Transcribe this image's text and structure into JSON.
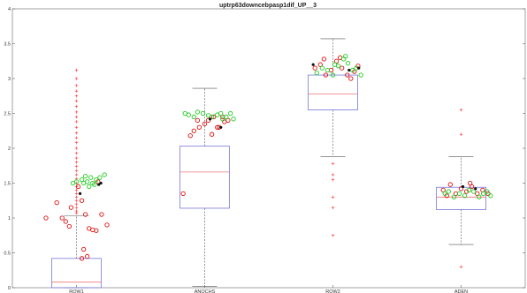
{
  "chart_data": {
    "type": "box",
    "title": "uptrp63downcebpasp1dif_UP__3",
    "xlabel": "",
    "ylabel": "",
    "ylim": [
      0,
      4
    ],
    "yticks": [
      "0",
      "0.5",
      "1",
      "1.5",
      "2",
      "2.5",
      "3",
      "3.5",
      "4"
    ],
    "grid": false,
    "categories": [
      "ROW1",
      "ANOCHS",
      "ROW2",
      "ADEN"
    ],
    "colors": {
      "box": "#7777dd",
      "median": "#ee7777",
      "whisker": "#555555",
      "outlier": "#ff3333",
      "red_marker": "#dd1111",
      "green_marker": "#22cc22",
      "black_marker": "#111111"
    },
    "boxes": [
      {
        "q1": 0.0,
        "median": 0.08,
        "q3": 0.42,
        "whisker_low": 0.0,
        "whisker_high": 1.03,
        "outliers": [
          3.12,
          3.0,
          2.9,
          2.82,
          2.75,
          2.68,
          2.6,
          2.52,
          2.45,
          2.38,
          2.3,
          2.22,
          2.15,
          2.08,
          2.0,
          1.93,
          1.86,
          1.8,
          1.74,
          1.68,
          1.62,
          1.56,
          1.5,
          1.45,
          1.4,
          1.35,
          1.3,
          1.25,
          1.2,
          1.15,
          1.1,
          1.07
        ]
      },
      {
        "q1": 1.14,
        "median": 1.66,
        "q3": 2.03,
        "whisker_low": 0.02,
        "whisker_high": 2.86,
        "outliers": []
      },
      {
        "q1": 2.55,
        "median": 2.78,
        "q3": 3.05,
        "whisker_low": 1.88,
        "whisker_high": 3.57,
        "outliers": [
          1.78,
          1.62,
          1.55,
          1.3,
          1.15,
          0.75
        ]
      },
      {
        "q1": 1.12,
        "median": 1.3,
        "q3": 1.44,
        "whisker_low": 0.62,
        "whisker_high": 1.88,
        "outliers": [
          2.55,
          2.2,
          0.3
        ]
      }
    ],
    "markers": [
      {
        "category": 0,
        "series": "red",
        "points": [
          [
            -0.85,
            1.0
          ],
          [
            -0.55,
            1.22
          ],
          [
            -0.4,
            1.0
          ],
          [
            -0.3,
            0.95
          ],
          [
            -0.2,
            0.88
          ],
          [
            0.05,
            1.45
          ],
          [
            0.15,
            1.25
          ],
          [
            0.25,
            1.05
          ],
          [
            0.35,
            0.85
          ],
          [
            0.45,
            0.83
          ],
          [
            0.55,
            0.82
          ],
          [
            0.7,
            1.05
          ],
          [
            0.85,
            0.9
          ],
          [
            0.2,
            0.55
          ],
          [
            0.3,
            0.45
          ],
          [
            0.15,
            0.42
          ],
          [
            0.6,
            1.52
          ],
          [
            -0.15,
            1.15
          ]
        ]
      },
      {
        "category": 0,
        "series": "green",
        "points": [
          [
            -0.1,
            1.5
          ],
          [
            0.0,
            1.52
          ],
          [
            0.15,
            1.55
          ],
          [
            0.25,
            1.6
          ],
          [
            0.35,
            1.45
          ],
          [
            0.45,
            1.5
          ],
          [
            0.55,
            1.55
          ],
          [
            0.65,
            1.58
          ],
          [
            0.78,
            1.62
          ],
          [
            0.4,
            1.58
          ],
          [
            0.5,
            1.48
          ],
          [
            0.2,
            1.5
          ],
          [
            0.3,
            1.52
          ]
        ]
      },
      {
        "category": 0,
        "series": "black",
        "points": [
          [
            0.1,
            1.35
          ],
          [
            0.62,
            1.48
          ],
          [
            0.68,
            1.5
          ]
        ]
      },
      {
        "category": 1,
        "series": "red",
        "points": [
          [
            -0.6,
            1.35
          ],
          [
            -0.4,
            2.18
          ],
          [
            -0.3,
            2.25
          ],
          [
            -0.15,
            2.3
          ],
          [
            0.0,
            2.35
          ],
          [
            0.1,
            2.4
          ],
          [
            0.25,
            2.45
          ],
          [
            0.4,
            2.3
          ],
          [
            0.55,
            2.38
          ],
          [
            0.65,
            2.4
          ],
          [
            0.2,
            2.2
          ],
          [
            0.35,
            2.3
          ],
          [
            -0.2,
            2.4
          ],
          [
            0.5,
            2.45
          ]
        ]
      },
      {
        "category": 1,
        "series": "green",
        "points": [
          [
            -0.55,
            2.5
          ],
          [
            -0.45,
            2.48
          ],
          [
            -0.3,
            2.45
          ],
          [
            -0.2,
            2.52
          ],
          [
            -0.05,
            2.5
          ],
          [
            0.1,
            2.47
          ],
          [
            0.2,
            2.45
          ],
          [
            0.35,
            2.48
          ],
          [
            0.5,
            2.42
          ],
          [
            0.6,
            2.45
          ],
          [
            0.72,
            2.5
          ],
          [
            0.8,
            2.42
          ],
          [
            0.45,
            2.5
          ]
        ]
      },
      {
        "category": 1,
        "series": "black",
        "points": [
          [
            0.45,
            2.3
          ],
          [
            0.15,
            2.42
          ]
        ]
      },
      {
        "category": 2,
        "series": "red",
        "points": [
          [
            -0.5,
            3.15
          ],
          [
            -0.35,
            3.2
          ],
          [
            -0.2,
            3.05
          ],
          [
            -0.05,
            3.12
          ],
          [
            0.1,
            3.25
          ],
          [
            0.25,
            3.15
          ],
          [
            0.4,
            3.05
          ],
          [
            0.5,
            3.0
          ],
          [
            0.6,
            3.1
          ],
          [
            0.7,
            3.18
          ],
          [
            0.2,
            3.3
          ],
          [
            -0.25,
            3.28
          ]
        ]
      },
      {
        "category": 2,
        "series": "green",
        "points": [
          [
            -0.45,
            3.08
          ],
          [
            -0.3,
            3.15
          ],
          [
            -0.15,
            3.12
          ],
          [
            0.0,
            3.05
          ],
          [
            0.15,
            3.18
          ],
          [
            0.3,
            3.28
          ],
          [
            0.42,
            3.22
          ],
          [
            0.55,
            3.12
          ],
          [
            0.65,
            3.15
          ],
          [
            0.78,
            3.05
          ],
          [
            0.35,
            3.32
          ],
          [
            0.05,
            3.2
          ]
        ]
      },
      {
        "category": 2,
        "series": "black",
        "points": [
          [
            -0.55,
            3.2
          ],
          [
            0.45,
            3.12
          ],
          [
            0.72,
            3.15
          ]
        ]
      },
      {
        "category": 3,
        "series": "red",
        "points": [
          [
            -0.5,
            1.4
          ],
          [
            -0.3,
            1.48
          ],
          [
            -0.15,
            1.35
          ],
          [
            0.0,
            1.42
          ],
          [
            0.15,
            1.38
          ],
          [
            0.3,
            1.45
          ],
          [
            0.45,
            1.35
          ],
          [
            0.6,
            1.4
          ],
          [
            0.75,
            1.35
          ],
          [
            -0.4,
            1.32
          ],
          [
            0.25,
            1.5
          ]
        ]
      },
      {
        "category": 3,
        "series": "green",
        "points": [
          [
            -0.45,
            1.35
          ],
          [
            -0.35,
            1.38
          ],
          [
            -0.2,
            1.3
          ],
          [
            -0.05,
            1.35
          ],
          [
            0.1,
            1.32
          ],
          [
            0.22,
            1.4
          ],
          [
            0.35,
            1.38
          ],
          [
            0.5,
            1.3
          ],
          [
            0.62,
            1.35
          ],
          [
            0.72,
            1.38
          ],
          [
            0.82,
            1.32
          ]
        ]
      },
      {
        "category": 3,
        "series": "black",
        "points": [
          [
            0.05,
            1.45
          ],
          [
            0.4,
            1.42
          ]
        ]
      }
    ]
  }
}
